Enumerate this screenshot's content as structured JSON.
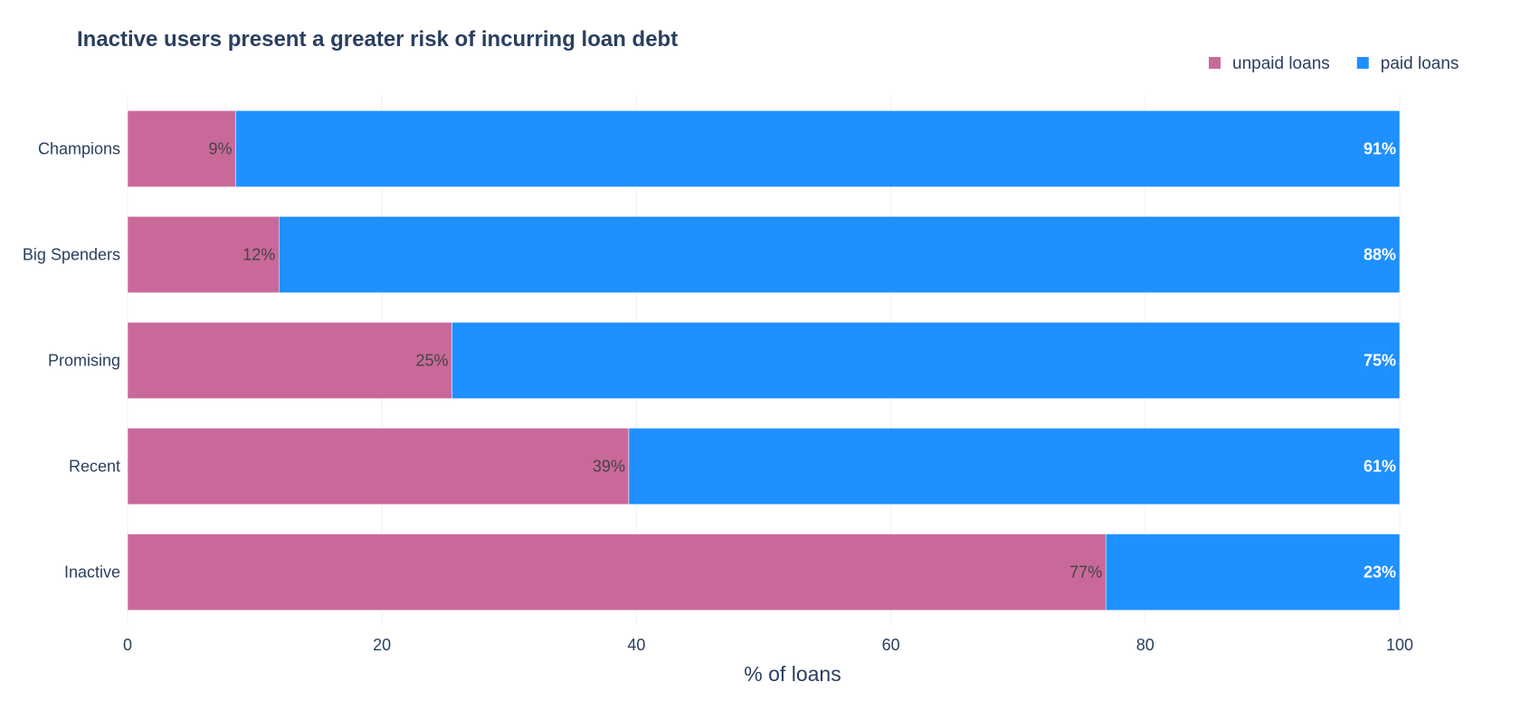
{
  "chart_data": {
    "type": "bar",
    "orientation": "horizontal",
    "stacked": true,
    "title": "Inactive users present a greater risk of incurring loan debt",
    "xlabel": "% of loans",
    "ylabel": "",
    "xlim": [
      0,
      100
    ],
    "x_ticks": [
      "0",
      "20",
      "40",
      "60",
      "80",
      "100"
    ],
    "grid": true,
    "legend_position": "top-right",
    "categories": [
      "Champions",
      "Big Spenders",
      "Promising",
      "Recent",
      "Inactive"
    ],
    "series": [
      {
        "name": "unpaid loans",
        "color": "#c9699a",
        "values": [
          8.5,
          11.9,
          25.5,
          39.4,
          76.9
        ],
        "labels": [
          "9%",
          "12%",
          "25%",
          "39%",
          "77%"
        ]
      },
      {
        "name": "paid loans",
        "color": "#1e90ff",
        "values": [
          91.5,
          88.1,
          74.5,
          60.6,
          23.1
        ],
        "labels": [
          "91%",
          "88%",
          "75%",
          "61%",
          "23%"
        ]
      }
    ]
  }
}
